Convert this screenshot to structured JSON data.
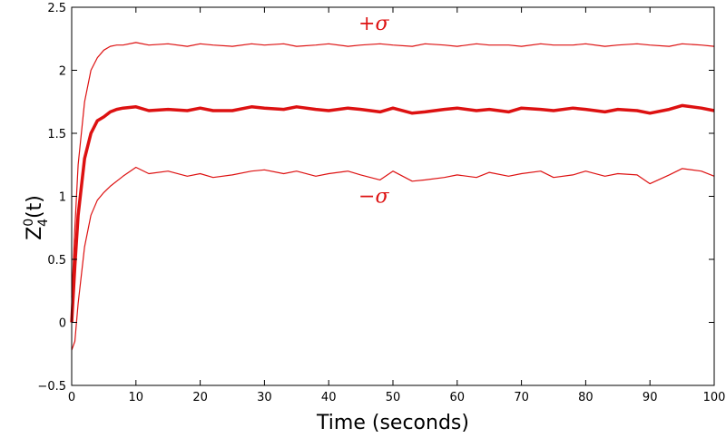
{
  "chart_data": {
    "type": "line",
    "xlabel": "Time (seconds)",
    "ylabel": {
      "base": "Z",
      "sup": "0",
      "sub": "4",
      "tail": "(t)"
    },
    "xlim": [
      0,
      100
    ],
    "ylim": [
      -0.5,
      2.5
    ],
    "xticks": [
      0,
      10,
      20,
      30,
      40,
      50,
      60,
      70,
      80,
      90,
      100
    ],
    "yticks": [
      -0.5,
      0,
      0.5,
      1,
      1.5,
      2,
      2.5
    ],
    "xtick_labels": [
      "0",
      "10",
      "20",
      "30",
      "40",
      "50",
      "60",
      "70",
      "80",
      "90",
      "100"
    ],
    "ytick_labels": [
      "−0.5",
      "0",
      "0.5",
      "1",
      "1.5",
      "2",
      "2.5"
    ],
    "grid": false,
    "legend": "none",
    "color": "#dd1111",
    "series": [
      {
        "role": "upper",
        "x": [
          0,
          0.5,
          1,
          2,
          3,
          4,
          5,
          6,
          7,
          8,
          10,
          12,
          15,
          18,
          20,
          22,
          25,
          28,
          30,
          33,
          35,
          38,
          40,
          43,
          45,
          48,
          50,
          53,
          55,
          58,
          60,
          63,
          65,
          68,
          70,
          73,
          75,
          78,
          80,
          83,
          85,
          88,
          90,
          93,
          95,
          98,
          100
        ],
        "y": [
          0.2,
          0.75,
          1.25,
          1.75,
          2.0,
          2.1,
          2.16,
          2.19,
          2.2,
          2.2,
          2.22,
          2.2,
          2.21,
          2.19,
          2.21,
          2.2,
          2.19,
          2.21,
          2.2,
          2.21,
          2.19,
          2.2,
          2.21,
          2.19,
          2.2,
          2.21,
          2.2,
          2.19,
          2.21,
          2.2,
          2.19,
          2.21,
          2.2,
          2.2,
          2.19,
          2.21,
          2.2,
          2.2,
          2.21,
          2.19,
          2.2,
          2.21,
          2.2,
          2.19,
          2.21,
          2.2,
          2.19
        ]
      },
      {
        "role": "mean",
        "x": [
          0,
          0.5,
          1,
          2,
          3,
          4,
          5,
          6,
          7,
          8,
          10,
          12,
          15,
          18,
          20,
          22,
          25,
          28,
          30,
          33,
          35,
          38,
          40,
          43,
          45,
          48,
          50,
          53,
          55,
          58,
          60,
          63,
          65,
          68,
          70,
          73,
          75,
          78,
          80,
          83,
          85,
          88,
          90,
          93,
          95,
          98,
          100
        ],
        "y": [
          0.0,
          0.45,
          0.85,
          1.3,
          1.5,
          1.6,
          1.63,
          1.67,
          1.69,
          1.7,
          1.71,
          1.68,
          1.69,
          1.68,
          1.7,
          1.68,
          1.68,
          1.71,
          1.7,
          1.69,
          1.71,
          1.69,
          1.68,
          1.7,
          1.69,
          1.67,
          1.7,
          1.66,
          1.67,
          1.69,
          1.7,
          1.68,
          1.69,
          1.67,
          1.7,
          1.69,
          1.68,
          1.7,
          1.69,
          1.67,
          1.69,
          1.68,
          1.66,
          1.69,
          1.72,
          1.7,
          1.68
        ]
      },
      {
        "role": "lower",
        "x": [
          0,
          0.5,
          1,
          2,
          3,
          4,
          5,
          6,
          7,
          8,
          10,
          12,
          15,
          18,
          20,
          22,
          25,
          28,
          30,
          33,
          35,
          38,
          40,
          43,
          45,
          48,
          50,
          53,
          55,
          58,
          60,
          63,
          65,
          68,
          70,
          73,
          75,
          78,
          80,
          83,
          85,
          88,
          90,
          93,
          95,
          98,
          100
        ],
        "y": [
          -0.22,
          -0.15,
          0.15,
          0.6,
          0.85,
          0.97,
          1.03,
          1.08,
          1.12,
          1.16,
          1.23,
          1.18,
          1.2,
          1.16,
          1.18,
          1.15,
          1.17,
          1.2,
          1.21,
          1.18,
          1.2,
          1.16,
          1.18,
          1.2,
          1.17,
          1.13,
          1.2,
          1.12,
          1.13,
          1.15,
          1.17,
          1.15,
          1.19,
          1.16,
          1.18,
          1.2,
          1.15,
          1.17,
          1.2,
          1.16,
          1.18,
          1.17,
          1.1,
          1.17,
          1.22,
          1.2,
          1.16
        ]
      }
    ],
    "annotations": [
      {
        "text": "+σ",
        "x": 47,
        "y": 2.32
      },
      {
        "text": "−σ",
        "x": 47,
        "y": 0.95
      }
    ]
  }
}
